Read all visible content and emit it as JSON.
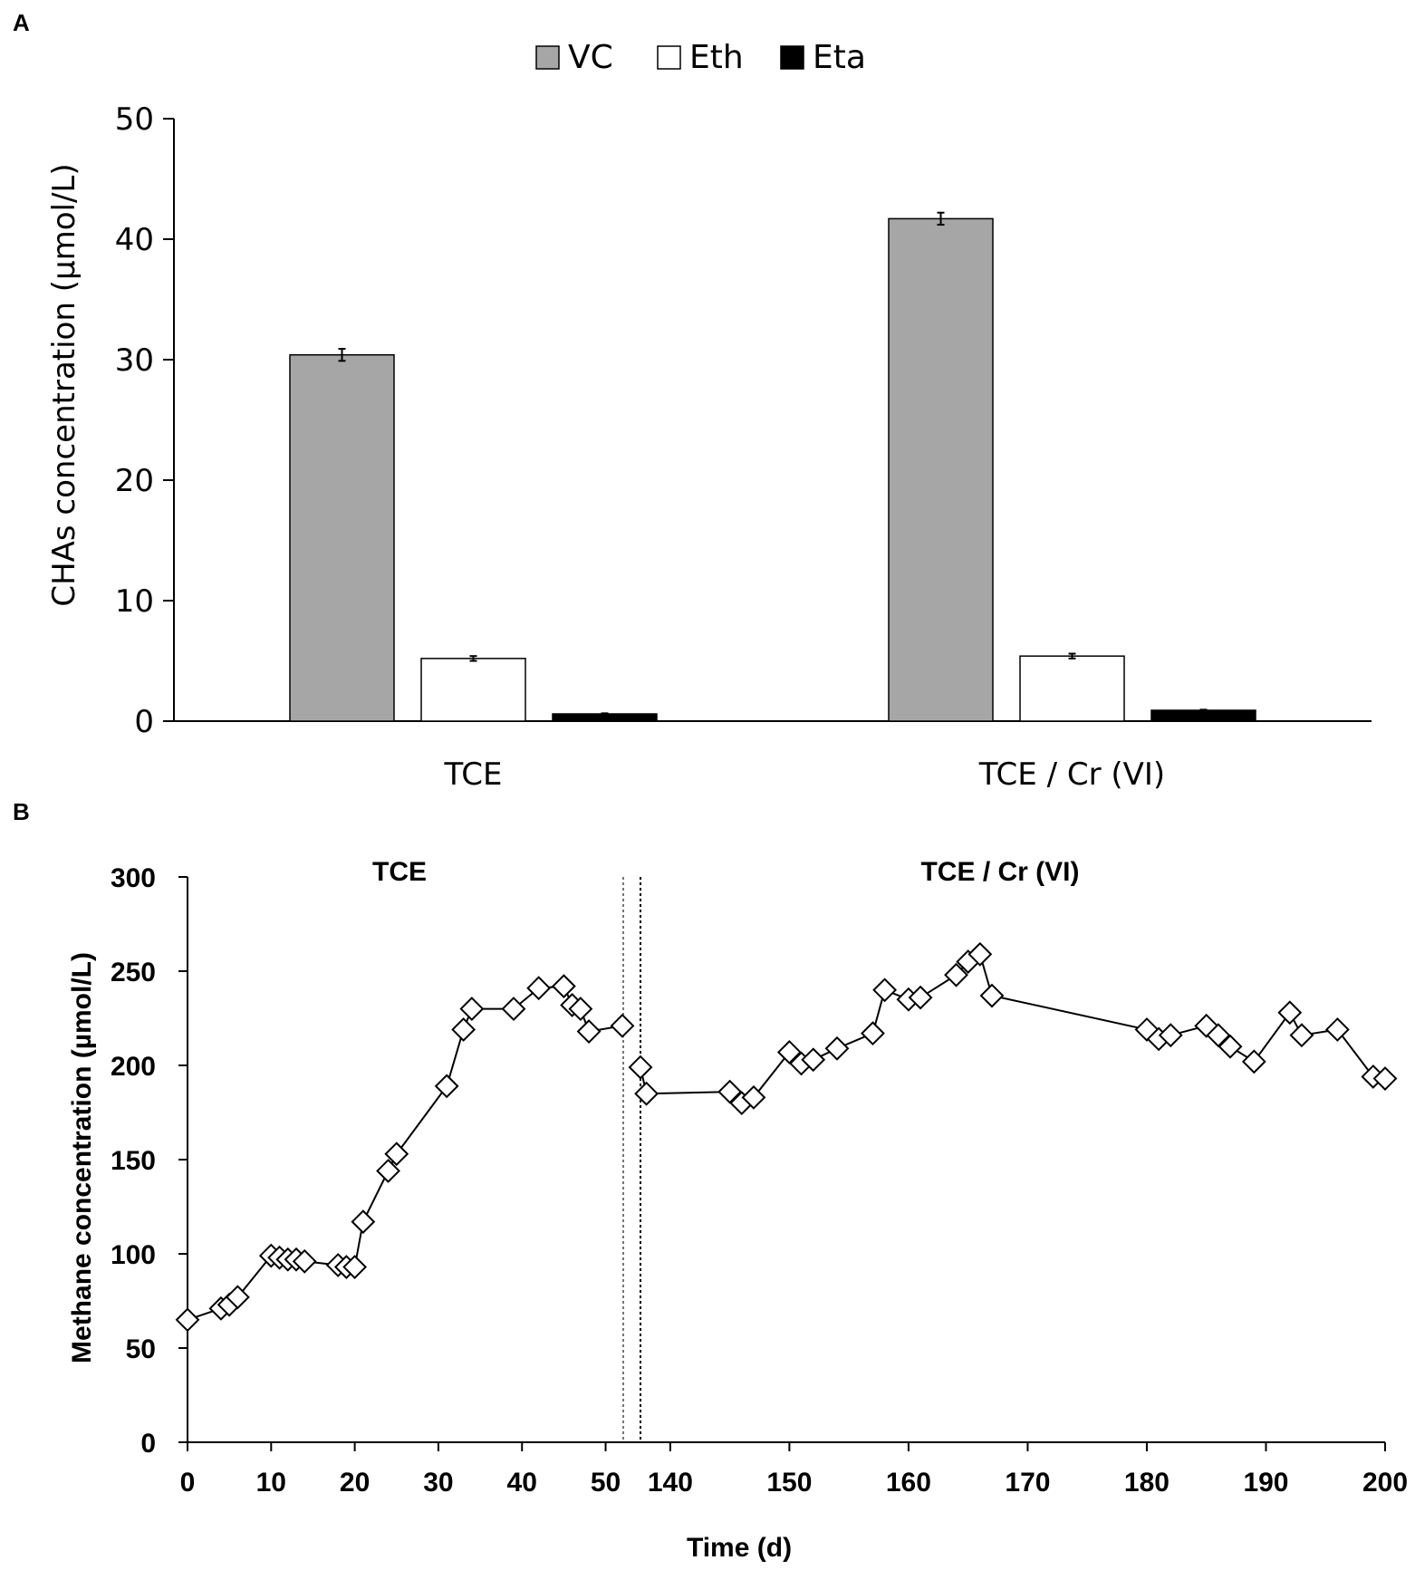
{
  "panels": {
    "a_letter": "A",
    "b_letter": "B"
  },
  "colors": {
    "vc": "#a6a6a6",
    "eth": "#ffffff",
    "eta": "#000000",
    "axis": "#000000",
    "marker_fill": "#ffffff"
  },
  "chart_data": [
    {
      "type": "bar",
      "categories": [
        "TCE",
        "TCE / Cr (VI)"
      ],
      "series": [
        {
          "name": "VC",
          "values": [
            30.4,
            41.7
          ],
          "errors": [
            0.5,
            0.5
          ]
        },
        {
          "name": "Eth",
          "values": [
            5.2,
            5.4
          ],
          "errors": [
            0.2,
            0.2
          ]
        },
        {
          "name": "Eta",
          "values": [
            0.6,
            0.9
          ],
          "errors": [
            0.05,
            0.05
          ]
        }
      ],
      "title": "",
      "xlabel": "",
      "ylabel": "CHAs concentration (µmol/L)",
      "ylim": [
        0,
        50
      ],
      "yticks": [
        "0",
        "10",
        "20",
        "30",
        "40",
        "50"
      ],
      "legend": "top-center",
      "grid": false
    },
    {
      "type": "line",
      "xlabel": "Time (d)",
      "ylabel": "Methane concentration (µmol/L)",
      "ylim": [
        0,
        300
      ],
      "yticks": [
        "0",
        "50",
        "100",
        "150",
        "200",
        "250",
        "300"
      ],
      "grid": false,
      "marker": "diamond",
      "segments": [
        {
          "label": "TCE",
          "xlim": [
            0,
            52
          ],
          "xticks": [
            "0",
            "10",
            "20",
            "30",
            "40",
            "50"
          ],
          "x": [
            0,
            4,
            5,
            6,
            10,
            11,
            12,
            13,
            14,
            18,
            19,
            20,
            21,
            24,
            25,
            31,
            33,
            34,
            39,
            42,
            45,
            46,
            47,
            48,
            52
          ],
          "y": [
            65,
            71,
            73,
            77,
            99,
            98,
            97,
            97,
            96,
            94,
            93,
            93,
            117,
            144,
            153,
            189,
            219,
            230,
            230,
            241,
            242,
            232,
            230,
            218,
            221
          ]
        },
        {
          "label": "TCE / Cr (VI)",
          "xlim": [
            137.5,
            200
          ],
          "xticks": [
            "140",
            "150",
            "160",
            "170",
            "180",
            "190",
            "200"
          ],
          "x": [
            137.5,
            138,
            145,
            146,
            147,
            150,
            151,
            152,
            154,
            157,
            158,
            160,
            161,
            164,
            165,
            166,
            167,
            180,
            181,
            182,
            185,
            186,
            187,
            189,
            192,
            193,
            196,
            199,
            200
          ],
          "y": [
            199,
            185,
            186,
            180,
            183,
            207,
            201,
            203,
            209,
            217,
            240,
            235,
            236,
            248,
            255,
            259,
            237,
            219,
            214,
            216,
            221,
            216,
            210,
            202,
            228,
            216,
            219,
            194,
            193
          ]
        }
      ]
    }
  ]
}
